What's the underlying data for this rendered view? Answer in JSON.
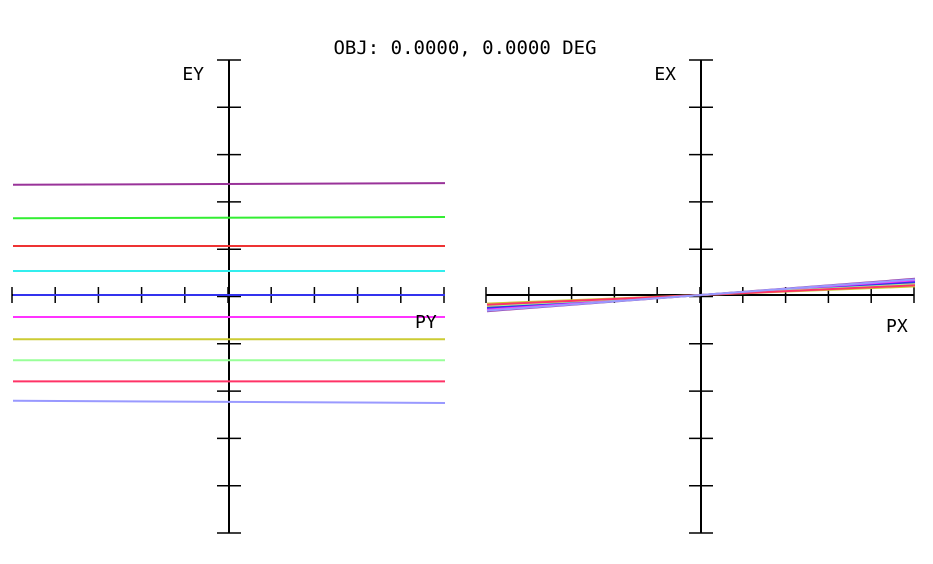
{
  "chart_data": [
    {
      "type": "line",
      "title": "OBJ: 0.0000, 0.0000 DEG",
      "xlabel": "PY",
      "ylabel": "EY",
      "xlim": [
        -1,
        1
      ],
      "ylim": [
        -1,
        1
      ],
      "grid": false,
      "x": [
        -1,
        1
      ],
      "series": [
        {
          "color": "#993399",
          "values": [
            0.51,
            0.518
          ]
        },
        {
          "color": "#33ee33",
          "values": [
            0.355,
            0.361
          ]
        },
        {
          "color": "#ee3333",
          "values": [
            0.227,
            0.227
          ]
        },
        {
          "color": "#33eeee",
          "values": [
            0.111,
            0.111
          ]
        },
        {
          "color": "#3333ee",
          "values": [
            0.0,
            0.0
          ]
        },
        {
          "color": "#ff33ff",
          "values": [
            -0.102,
            -0.102
          ]
        },
        {
          "color": "#cccc33",
          "values": [
            -0.205,
            -0.205
          ]
        },
        {
          "color": "#99ff99",
          "values": [
            -0.302,
            -0.302
          ]
        },
        {
          "color": "#ff3366",
          "values": [
            -0.4,
            -0.4
          ]
        },
        {
          "color": "#9999ff",
          "values": [
            -0.49,
            -0.5
          ]
        }
      ]
    },
    {
      "type": "line",
      "xlabel": "PX",
      "ylabel": "EX",
      "xlim": [
        -1,
        1
      ],
      "ylim": [
        -1,
        1
      ],
      "grid": false,
      "x": [
        -1,
        0,
        1
      ],
      "series": [
        {
          "color": "#993399",
          "values": [
            -0.075,
            0,
            0.075
          ]
        },
        {
          "color": "#33ee33",
          "values": [
            -0.07,
            0,
            0.07
          ]
        },
        {
          "color": "#ee3333",
          "values": [
            -0.055,
            0,
            0.055
          ]
        },
        {
          "color": "#33eeee",
          "values": [
            -0.065,
            0,
            0.065
          ]
        },
        {
          "color": "#3333ee",
          "values": [
            -0.06,
            0,
            0.06
          ]
        },
        {
          "color": "#ff33ff",
          "values": [
            -0.068,
            0,
            0.068
          ]
        },
        {
          "color": "#cccc33",
          "values": [
            -0.04,
            0,
            0.04
          ]
        },
        {
          "color": "#99ff99",
          "values": [
            -0.05,
            0,
            0.05
          ]
        },
        {
          "color": "#ff3366",
          "values": [
            -0.045,
            0,
            0.045
          ]
        },
        {
          "color": "#9999ff",
          "values": [
            -0.072,
            0,
            0.072
          ]
        }
      ]
    }
  ]
}
